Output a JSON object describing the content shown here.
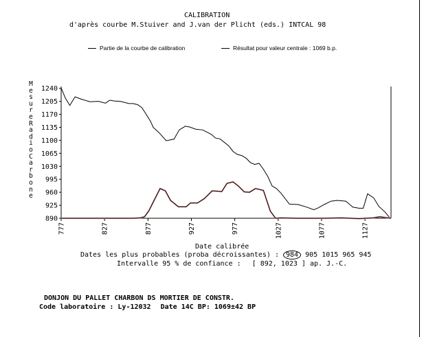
{
  "header": {
    "title": "CALIBRATION",
    "source": "d'après courbe   M.Stuiver and J.van der Plicht (eds.) INTCAL 98"
  },
  "legend": {
    "item1": "Partie de la courbe de calibration",
    "item2": "Résultat pour valeur centrale : 1069 b.p."
  },
  "chart_data": {
    "type": "line",
    "xlabel": "Date calibrée",
    "ylabel": "Mesure Radio Carbone",
    "xlim": [
      777,
      1157
    ],
    "ylim": [
      890,
      1245
    ],
    "x_ticks": [
      777,
      827,
      877,
      927,
      977,
      1027,
      1077,
      1127
    ],
    "y_ticks": [
      1240,
      1205,
      1170,
      1135,
      1100,
      1065,
      1030,
      995,
      960,
      925,
      890
    ],
    "grid": false,
    "legend_position": "top",
    "series": [
      {
        "name": "Partie de la courbe de calibration",
        "color": "#000000",
        "x": [
          777,
          782,
          787,
          793,
          800,
          810,
          820,
          828,
          833,
          838,
          845,
          855,
          860,
          865,
          870,
          875,
          880,
          883,
          890,
          898,
          907,
          913,
          920,
          925,
          932,
          940,
          950,
          955,
          960,
          970,
          975,
          980,
          985,
          990,
          995,
          1000,
          1005,
          1010,
          1015,
          1020,
          1025,
          1030,
          1040,
          1050,
          1060,
          1068,
          1073,
          1080,
          1088,
          1095,
          1105,
          1113,
          1120,
          1125,
          1130,
          1137,
          1143,
          1150,
          1155
        ],
        "y": [
          1241,
          1213,
          1194,
          1217,
          1211,
          1204,
          1205,
          1200,
          1208,
          1206,
          1205,
          1199,
          1199,
          1196,
          1188,
          1170,
          1151,
          1135,
          1120,
          1099,
          1103,
          1128,
          1138,
          1136,
          1130,
          1128,
          1116,
          1106,
          1104,
          1085,
          1070,
          1062,
          1059,
          1052,
          1040,
          1035,
          1038,
          1022,
          1003,
          977,
          970,
          958,
          928,
          927,
          920,
          913,
          918,
          927,
          936,
          938,
          936,
          920,
          917,
          917,
          956,
          945,
          922,
          907,
          893
        ]
      },
      {
        "name": "Résultat pour valeur centrale : 1069 b.p.",
        "color": "#000000",
        "x": [
          777,
          860,
          868,
          873,
          878,
          884,
          891,
          897,
          903,
          912,
          921,
          926,
          934,
          942,
          951,
          962,
          968,
          975,
          981,
          988,
          994,
          1001,
          1010,
          1018,
          1024,
          1030,
          1048,
          1080,
          1100,
          1120,
          1128,
          1136,
          1144,
          1157
        ],
        "y": [
          890,
          890,
          891,
          894,
          910,
          938,
          970,
          964,
          938,
          921,
          921,
          931,
          931,
          943,
          964,
          962,
          984,
          988,
          977,
          961,
          960,
          970,
          965,
          909,
          890,
          891,
          890,
          890,
          891,
          889,
          890,
          891,
          894,
          890
        ]
      }
    ],
    "annotations": {
      "probable_dates_label": "Dates les plus probables (proba décroissantes) :",
      "probable_dates_circled": "984",
      "probable_dates_rest": "905 1015 965 945",
      "interval_label": "Intervalle 95 % de confiance :",
      "interval_value": "[ 892, 1023 ] ap. J.-C."
    }
  },
  "footer": {
    "site": "DONJON DU PALLET CHARBON DS MORTIER DE CONSTR.",
    "lab_code_label": "Code laboratoire :",
    "lab_code": "Ly-12032",
    "date_label": "Date 14C BP:",
    "date_value": "1069±42 BP"
  }
}
